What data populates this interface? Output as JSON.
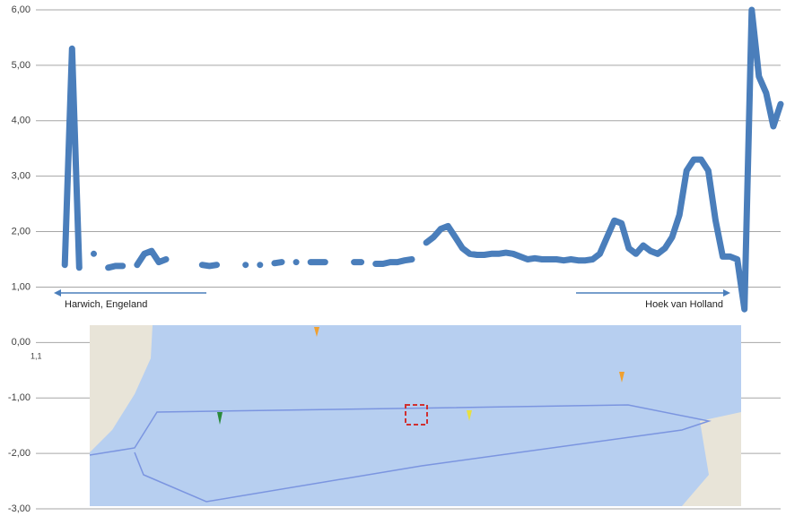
{
  "chart_data": {
    "type": "line",
    "values": [
      null,
      null,
      null,
      null,
      1.4,
      5.3,
      1.35,
      null,
      1.6,
      null,
      1.35,
      1.38,
      1.38,
      null,
      1.4,
      1.6,
      1.65,
      1.45,
      1.5,
      null,
      null,
      null,
      null,
      1.4,
      1.38,
      1.4,
      null,
      null,
      null,
      1.4,
      null,
      1.4,
      null,
      1.43,
      1.45,
      null,
      1.45,
      null,
      1.45,
      1.45,
      1.45,
      null,
      null,
      null,
      1.45,
      1.45,
      null,
      1.42,
      1.42,
      1.45,
      1.45,
      1.48,
      1.5,
      null,
      1.8,
      1.9,
      2.05,
      2.1,
      1.9,
      1.7,
      1.6,
      1.58,
      1.58,
      1.6,
      1.6,
      1.62,
      1.6,
      1.55,
      1.5,
      1.52,
      1.5,
      1.5,
      1.5,
      1.48,
      1.5,
      1.48,
      1.48,
      1.5,
      1.6,
      1.9,
      2.2,
      2.15,
      1.7,
      1.6,
      1.75,
      1.65,
      1.6,
      1.7,
      1.9,
      2.3,
      3.1,
      3.3,
      3.3,
      3.1,
      2.2,
      1.55,
      1.55,
      1.5,
      0.6,
      6.0,
      4.8,
      4.5,
      3.9,
      4.3
    ],
    "color": "#4a7ebb",
    "ylim": [
      -3,
      6
    ],
    "yticks": [
      {
        "value": -3,
        "label": "-3,00"
      },
      {
        "value": -2,
        "label": "-2,00"
      },
      {
        "value": -1,
        "label": "-1,00"
      },
      {
        "value": 0,
        "label": "0,00"
      },
      {
        "value": 1,
        "label": "1,00"
      },
      {
        "value": 2,
        "label": "2,00"
      },
      {
        "value": 3,
        "label": "3,00"
      },
      {
        "value": 4,
        "label": "4,00"
      },
      {
        "value": 5,
        "label": "5,00"
      },
      {
        "value": 6,
        "label": "6,00"
      }
    ],
    "grid": true,
    "annotations": [
      "Harwich, Engeland",
      "Hoek van Holland",
      "1,1"
    ]
  }
}
